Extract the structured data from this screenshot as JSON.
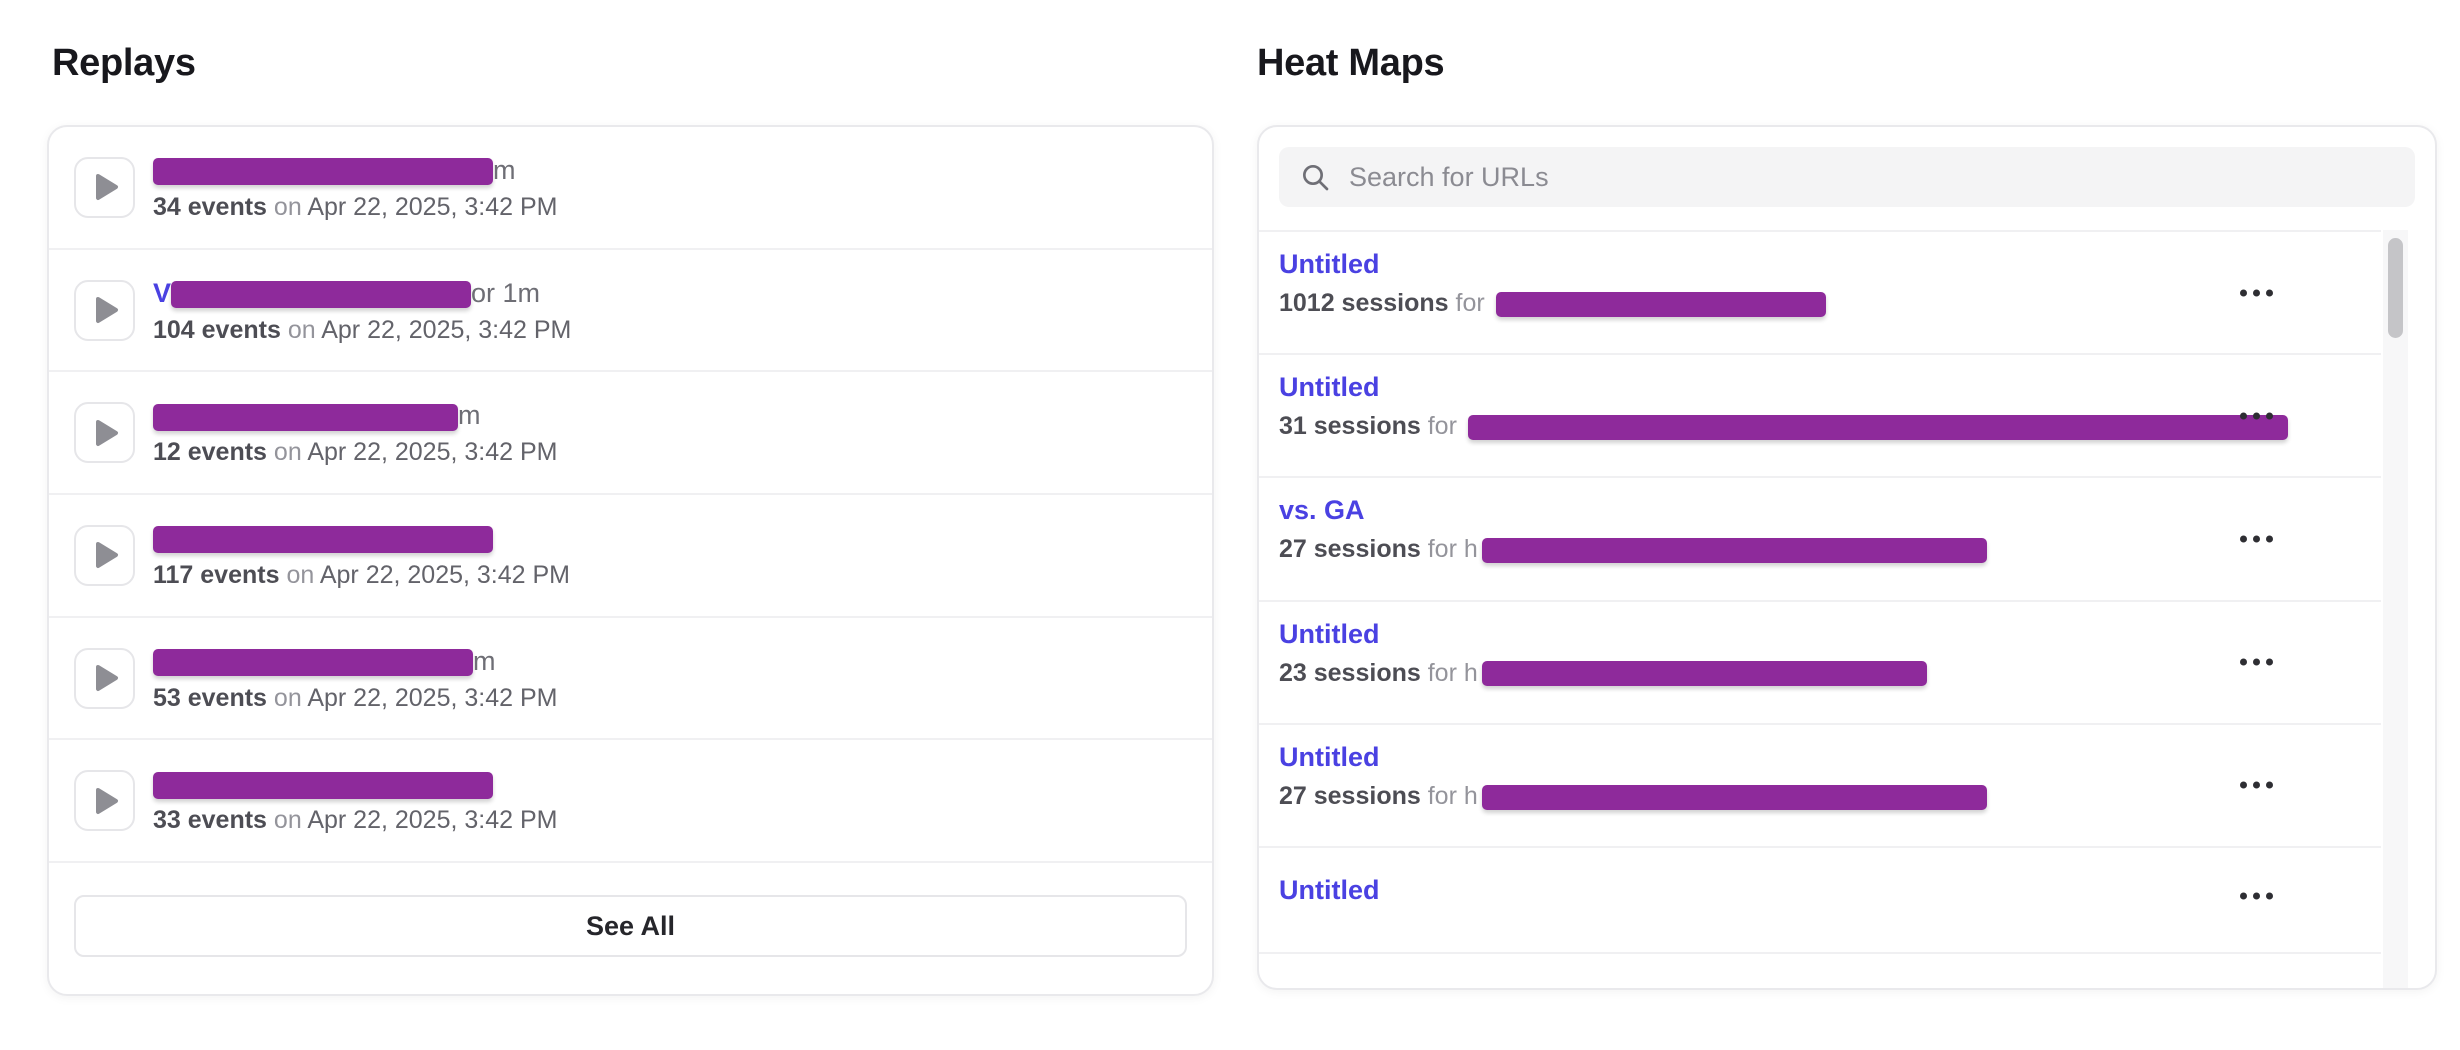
{
  "colors": {
    "heading_color": "#18181d",
    "link_color": "#4a41e2",
    "redaction_color": "#8e2a9b",
    "text_strong": "#4d4d54",
    "text_muted": "#94949b",
    "text_date": "#63636a",
    "search_bg": "#f4f4f5",
    "scroll_thumb": "#c5c5c8"
  },
  "replays": {
    "title": "Replays",
    "see_all_label": "See All",
    "items": [
      {
        "name_prefix": "",
        "redaction_width": 340,
        "name_suffix": "m",
        "events": "34 events",
        "on_label": "on",
        "date": "Apr 22, 2025, 3:42 PM"
      },
      {
        "name_prefix": "V",
        "redaction_width": 300,
        "name_suffix": "or 1m",
        "events": "104 events",
        "on_label": "on",
        "date": "Apr 22, 2025, 3:42 PM"
      },
      {
        "name_prefix": "",
        "redaction_width": 305,
        "name_suffix": "m",
        "events": "12 events",
        "on_label": "on",
        "date": "Apr 22, 2025, 3:42 PM"
      },
      {
        "name_prefix": "",
        "redaction_width": 340,
        "name_suffix": "",
        "events": "117 events",
        "on_label": "on",
        "date": "Apr 22, 2025, 3:42 PM"
      },
      {
        "name_prefix": "",
        "redaction_width": 320,
        "name_suffix": "m",
        "events": "53 events",
        "on_label": "on",
        "date": "Apr 22, 2025, 3:42 PM"
      },
      {
        "name_prefix": "",
        "redaction_width": 340,
        "name_suffix": "",
        "events": "33 events",
        "on_label": "on",
        "date": "Apr 22, 2025, 3:42 PM"
      }
    ]
  },
  "heatmaps": {
    "title": "Heat Maps",
    "search_placeholder": "Search for URLs",
    "menu_icon": "more-horizontal",
    "items": [
      {
        "title": "Untitled",
        "sessions": "1012 sessions",
        "for_label": "for",
        "url_prefix": "",
        "redaction_width": 330
      },
      {
        "title": "Untitled",
        "sessions": "31 sessions",
        "for_label": "for",
        "url_prefix": "",
        "redaction_width": 820
      },
      {
        "title": "vs. GA",
        "sessions": "27 sessions",
        "for_label": "for",
        "url_prefix": "h",
        "redaction_width": 505
      },
      {
        "title": "Untitled",
        "sessions": "23 sessions",
        "for_label": "for",
        "url_prefix": "h",
        "redaction_width": 445
      },
      {
        "title": "Untitled",
        "sessions": "27 sessions",
        "for_label": "for",
        "url_prefix": "h",
        "redaction_width": 505
      },
      {
        "title": "Untitled",
        "sessions": null,
        "for_label": "",
        "url_prefix": "",
        "redaction_width": 0
      }
    ],
    "partial_item": {
      "title": "Untitled"
    }
  }
}
